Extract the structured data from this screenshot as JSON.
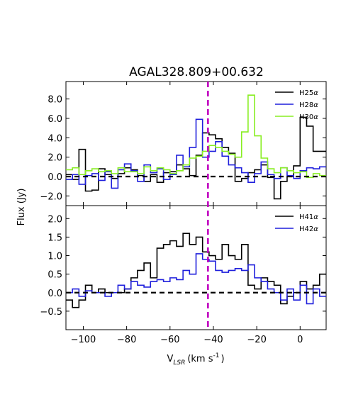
{
  "chart_data": {
    "title": "AGAL328.809+00.632",
    "xlabel": "V_LSR (km s^-1)",
    "xlabel_main": "V",
    "xlabel_sub": "LSR",
    "xlabel_unit": "(km s",
    "xlabel_sup": "-1",
    "xlabel_close": ")",
    "ylabel": "Flux (Jy)",
    "xlim": [
      -108,
      12
    ],
    "xticks": [
      -100,
      -80,
      -60,
      -40,
      -20,
      0
    ],
    "xtick_labels": [
      "−100",
      "−80",
      "−60",
      "−40",
      "−20",
      "0"
    ],
    "vline": {
      "x": -42.5,
      "color": "#c000c0",
      "style": "dashed"
    },
    "baseline": {
      "y": 0,
      "color": "#000000",
      "style": "dashed"
    },
    "panels": [
      {
        "name": "top",
        "type": "line",
        "step": true,
        "ylim": [
          -3.0,
          9.8
        ],
        "yticks": [
          -2.0,
          0.0,
          2.0,
          4.0,
          6.0,
          8.0
        ],
        "ytick_labels": [
          "−2.0",
          "0.0",
          "2.0",
          "4.0",
          "6.0",
          "8.0"
        ],
        "legend_position": "top-right",
        "series": [
          {
            "name": "H25α",
            "label_main": "H25",
            "label_greek": "α",
            "color": "#000000",
            "x": [
              -108,
              -105,
              -102,
              -99,
              -96,
              -93,
              -90,
              -87,
              -84,
              -81,
              -78,
              -75,
              -72,
              -69,
              -66,
              -63,
              -60,
              -57,
              -54,
              -51,
              -48,
              -45,
              -42,
              -39,
              -36,
              -33,
              -30,
              -27,
              -24,
              -21,
              -18,
              -15,
              -12,
              -9,
              -6,
              -3,
              0,
              3,
              6,
              9
            ],
            "y": [
              0.2,
              -0.3,
              2.8,
              -1.5,
              -1.4,
              0.8,
              0.2,
              -0.2,
              0.3,
              0.9,
              0.7,
              0.1,
              -0.5,
              0.2,
              -0.6,
              0.4,
              0.5,
              1.2,
              0.8,
              0.1,
              2.2,
              4.5,
              4.3,
              3.9,
              3.0,
              2.4,
              -0.5,
              -0.2,
              0.4,
              0.7,
              1.2,
              -0.1,
              -2.3,
              -0.5,
              0.0,
              1.1,
              6.1,
              5.2,
              2.6,
              2.6
            ]
          },
          {
            "name": "H28α",
            "label_main": "H28",
            "label_greek": "α",
            "color": "#1f1fdc",
            "x": [
              -108,
              -105,
              -102,
              -99,
              -96,
              -93,
              -90,
              -87,
              -84,
              -81,
              -78,
              -75,
              -72,
              -69,
              -66,
              -63,
              -60,
              -57,
              -54,
              -51,
              -48,
              -45,
              -42,
              -39,
              -36,
              -33,
              -30,
              -27,
              -24,
              -21,
              -18,
              -15,
              -12,
              -9,
              -6,
              -3,
              0,
              3,
              6,
              9
            ],
            "y": [
              -0.3,
              0.2,
              -0.8,
              0.1,
              0.3,
              -0.4,
              0.5,
              -1.2,
              0.7,
              1.3,
              0.6,
              -0.5,
              1.2,
              0.4,
              0.8,
              -0.3,
              0.2,
              2.2,
              1.0,
              3.0,
              5.9,
              2.0,
              2.6,
              3.6,
              2.1,
              1.2,
              0.9,
              0.4,
              -0.6,
              0.3,
              1.5,
              0.2,
              -0.2,
              0.9,
              0.1,
              -0.2,
              0.6,
              0.9,
              0.8,
              1.0
            ]
          },
          {
            "name": "H30α",
            "label_main": "H30",
            "label_greek": "α",
            "color": "#88ee22",
            "x": [
              -108,
              -105,
              -102,
              -99,
              -96,
              -93,
              -90,
              -87,
              -84,
              -81,
              -78,
              -75,
              -72,
              -69,
              -66,
              -63,
              -60,
              -57,
              -54,
              -51,
              -48,
              -45,
              -42,
              -39,
              -36,
              -33,
              -30,
              -27,
              -24,
              -21,
              -18,
              -15,
              -12,
              -9,
              -6,
              -3,
              0,
              3,
              6,
              9
            ],
            "y": [
              0.7,
              0.9,
              0.2,
              0.6,
              0.8,
              0.5,
              0.6,
              0.3,
              0.9,
              0.5,
              0.5,
              0.3,
              1.0,
              0.6,
              0.9,
              0.7,
              0.3,
              0.6,
              1.2,
              1.9,
              2.1,
              2.6,
              3.2,
              3.0,
              2.6,
              2.3,
              2.0,
              4.6,
              8.4,
              4.2,
              1.9,
              0.8,
              0.4,
              0.9,
              0.6,
              0.4,
              0.5,
              -0.1,
              0.3,
              0.1
            ]
          }
        ]
      },
      {
        "name": "bottom",
        "type": "line",
        "step": true,
        "ylim": [
          -1.0,
          2.35
        ],
        "yticks": [
          -0.5,
          0.0,
          0.5,
          1.0,
          1.5,
          2.0
        ],
        "ytick_labels": [
          "−0.5",
          "0.0",
          "0.5",
          "1.0",
          "1.5",
          "2.0"
        ],
        "legend_position": "top-right",
        "series": [
          {
            "name": "H41α",
            "label_main": "H41",
            "label_greek": "α",
            "color": "#000000",
            "x": [
              -108,
              -105,
              -102,
              -99,
              -96,
              -93,
              -90,
              -87,
              -84,
              -81,
              -78,
              -75,
              -72,
              -69,
              -66,
              -63,
              -60,
              -57,
              -54,
              -51,
              -48,
              -45,
              -42,
              -39,
              -36,
              -33,
              -30,
              -27,
              -24,
              -21,
              -18,
              -15,
              -12,
              -9,
              -6,
              -3,
              0,
              3,
              6,
              9
            ],
            "y": [
              -0.2,
              -0.4,
              -0.2,
              0.2,
              0.0,
              0.1,
              0.0,
              0.0,
              0.0,
              0.1,
              0.4,
              0.6,
              0.8,
              0.4,
              1.2,
              1.3,
              1.4,
              1.25,
              1.6,
              1.3,
              1.5,
              1.1,
              1.0,
              0.9,
              1.3,
              1.0,
              0.9,
              1.3,
              0.2,
              0.1,
              0.4,
              0.3,
              0.2,
              -0.3,
              -0.1,
              0.0,
              0.3,
              0.1,
              0.2,
              0.5
            ]
          },
          {
            "name": "H42α",
            "label_main": "H42",
            "label_greek": "α",
            "color": "#1f1fdc",
            "x": [
              -108,
              -105,
              -102,
              -99,
              -96,
              -93,
              -90,
              -87,
              -84,
              -81,
              -78,
              -75,
              -72,
              -69,
              -66,
              -63,
              -60,
              -57,
              -54,
              -51,
              -48,
              -45,
              -42,
              -39,
              -36,
              -33,
              -30,
              -27,
              -24,
              -21,
              -18,
              -15,
              -12,
              -9,
              -6,
              -3,
              0,
              3,
              6,
              9
            ],
            "y": [
              0.0,
              0.1,
              -0.1,
              0.05,
              0.0,
              0.0,
              -0.1,
              0.0,
              0.2,
              0.1,
              0.3,
              0.2,
              0.15,
              0.3,
              0.35,
              0.3,
              0.4,
              0.35,
              0.6,
              0.5,
              1.05,
              0.9,
              0.85,
              0.6,
              0.55,
              0.6,
              0.65,
              0.6,
              0.75,
              0.4,
              0.3,
              0.1,
              0.0,
              -0.2,
              0.1,
              -0.2,
              0.2,
              -0.3,
              0.1,
              -0.1
            ]
          }
        ]
      }
    ]
  }
}
